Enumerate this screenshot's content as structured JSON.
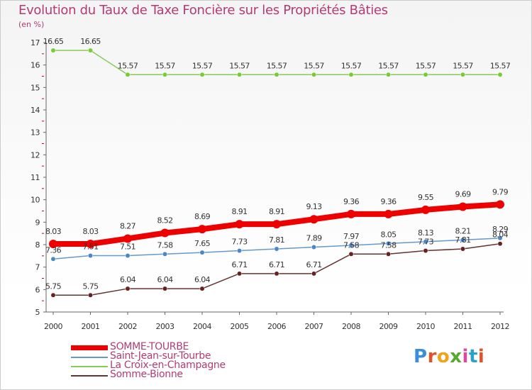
{
  "title": "Evolution du Taux de Taxe Foncière sur les Propriétés Bâties",
  "unit_label": "(en %)",
  "logo": {
    "text": "Proxiti"
  },
  "chart_data": {
    "type": "line",
    "title": "Evolution du Taux de Taxe Foncière sur les Propriétés Bâties",
    "ylabel": "(en %)",
    "xlabel": "",
    "ylim": [
      5,
      17
    ],
    "yticks": [
      "5",
      "6",
      "7",
      "8",
      "9",
      "10",
      "11",
      "12",
      "13",
      "14",
      "15",
      "16",
      "17"
    ],
    "categories": [
      "2000",
      "2001",
      "2002",
      "2003",
      "2004",
      "2005",
      "2006",
      "2007",
      "2008",
      "2009",
      "2010",
      "2011",
      "2012"
    ],
    "series": [
      {
        "name": "SOMME-TOURBE",
        "color": "#ee0000",
        "marker_color": "#ee0000",
        "values": [
          8.03,
          8.03,
          8.27,
          8.52,
          8.69,
          8.91,
          8.91,
          9.13,
          9.36,
          9.36,
          9.55,
          9.69,
          9.79
        ],
        "labels": [
          "8.03",
          "8.03",
          "8.27",
          "8.52",
          "8.69",
          "8.91",
          "8.91",
          "9.13",
          "9.36",
          "9.36",
          "9.55",
          "9.69",
          "9.79"
        ]
      },
      {
        "name": "Saint-Jean-sur-Tourbe",
        "color": "#6699cc",
        "marker_color": "#4b87c7",
        "values": [
          7.36,
          7.51,
          7.51,
          7.58,
          7.65,
          7.73,
          7.81,
          7.89,
          7.97,
          8.05,
          8.13,
          8.21,
          8.29
        ],
        "labels": [
          "7.36",
          "7.51",
          "7.51",
          "7.58",
          "7.65",
          "7.73",
          "7.81",
          "7.89",
          "7.97",
          "8.05",
          "8.13",
          "8.21",
          "8.29"
        ]
      },
      {
        "name": "La Croix-en-Champagne",
        "color": "#88cc55",
        "marker_color": "#77cc33",
        "values": [
          16.65,
          16.65,
          15.57,
          15.57,
          15.57,
          15.57,
          15.57,
          15.57,
          15.57,
          15.57,
          15.57,
          15.57,
          15.57
        ],
        "labels": [
          "16.65",
          "16.65",
          "15.57",
          "15.57",
          "15.57",
          "15.57",
          "15.57",
          "15.57",
          "15.57",
          "15.57",
          "15.57",
          "15.57",
          "15.57"
        ]
      },
      {
        "name": "Somme-Bionne",
        "color": "#663333",
        "marker_color": "#662222",
        "values": [
          5.75,
          5.75,
          6.04,
          6.04,
          6.04,
          6.71,
          6.71,
          6.71,
          7.58,
          7.58,
          7.73,
          7.81,
          8.04
        ],
        "labels": [
          "5.75",
          "5.75",
          "6.04",
          "6.04",
          "6.04",
          "6.71",
          "6.71",
          "6.71",
          "7.58",
          "7.58",
          "7.73",
          "7.81",
          "8.04"
        ]
      }
    ],
    "legend_position": "bottom-left",
    "grid": false
  }
}
